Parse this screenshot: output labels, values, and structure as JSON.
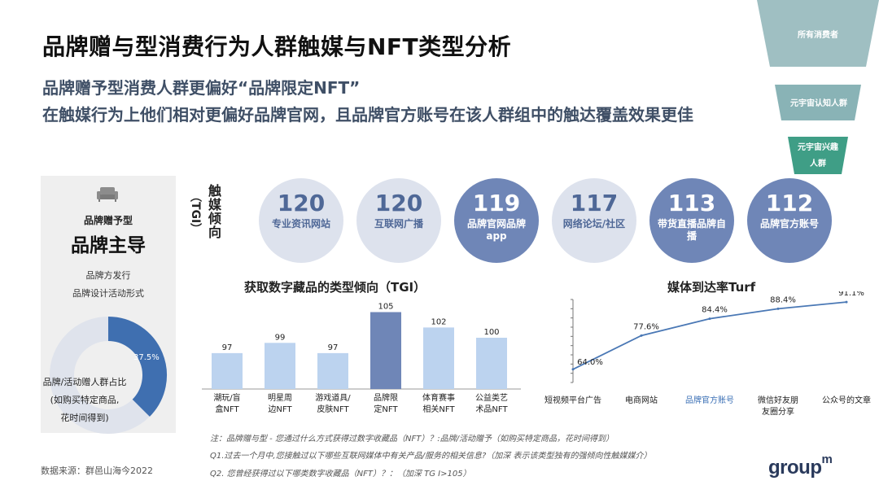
{
  "title": "品牌赠与型消费行为人群触媒与NFT类型分析",
  "subtitle1": "品牌赠予型消费人群更偏好“品牌限定NFT”",
  "subtitle2": "在触媒行为上他们相对更偏好品牌官网，且品牌官方账号在该人群组中的触达覆盖效果更佳",
  "funnel": {
    "levels": [
      "所有消费者",
      "元宇宙认知人群",
      "元宇宙兴趣人群"
    ],
    "colors": [
      "#9fbfc2",
      "#89b3b6",
      "#3f9e86"
    ]
  },
  "left_panel": {
    "icon": "couch-icon",
    "type_label": "品牌赠予型",
    "main_label": "品牌主导",
    "line1": "品牌方发行",
    "line2": "品牌设计活动形式",
    "donut_pct": "37.5%",
    "donut_value": 37.5,
    "donut_text1": "品牌/活动赠人群占比",
    "donut_text2": "(如购买特定商品,",
    "donut_text3": "花时间得到)"
  },
  "media": {
    "label": "触媒倾向",
    "tgi": "（TGI）",
    "items": [
      {
        "value": "120",
        "label": "专业资讯网站",
        "style": "light"
      },
      {
        "value": "120",
        "label": "互联网广播",
        "style": "light"
      },
      {
        "value": "119",
        "label": "品牌官网品牌app",
        "style": "dark"
      },
      {
        "value": "117",
        "label": "网络论坛/社区",
        "style": "light"
      },
      {
        "value": "113",
        "label": "带货直播品牌自播",
        "style": "dark"
      },
      {
        "value": "112",
        "label": "品牌官方账号",
        "style": "dark"
      }
    ]
  },
  "chart_data": [
    {
      "type": "bar",
      "title": "获取数字藏品的类型倾向（TGI）",
      "categories": [
        "潮玩/盲盒NFT",
        "明星周边NFT",
        "游戏道具/皮肤NFT",
        "品牌限定NFT",
        "体育赛事相关NFT",
        "公益类艺术品NFT"
      ],
      "category_lines": [
        [
          "潮玩/盲",
          "盒NFT"
        ],
        [
          "明星周",
          "边NFT"
        ],
        [
          "游戏道具/",
          "皮肤NFT"
        ],
        [
          "品牌限",
          "定NFT"
        ],
        [
          "体育赛事",
          "相关NFT"
        ],
        [
          "公益类艺",
          "术品NFT"
        ]
      ],
      "values": [
        97,
        99,
        97,
        105,
        102,
        100
      ],
      "highlight_index": 3,
      "colors": {
        "normal": "#bcd3ef",
        "highlight": "#6f86b7"
      }
    },
    {
      "type": "line",
      "title": "媒体到达率Turf",
      "categories": [
        "短视频平台广告",
        "电商网站",
        "品牌官方账号",
        "微信好友朋友圈分享",
        "公众号的文章"
      ],
      "category_lines": [
        [
          "短视频平台广告"
        ],
        [
          "电商网站"
        ],
        [
          "品牌官方账号"
        ],
        [
          "微信好友朋",
          "友圈分享"
        ],
        [
          "公众号的文章"
        ]
      ],
      "values": [
        64.0,
        77.6,
        84.4,
        88.4,
        91.1
      ],
      "labels": [
        "64.0%",
        "77.6%",
        "84.4%",
        "88.4%",
        "91.1%"
      ],
      "highlight_index": 2,
      "colors": {
        "line": "#4a78b5",
        "highlight_text": "#3a6fb5"
      }
    }
  ],
  "notes": {
    "note1": "注：品牌赠与型 - 您通过什么方式获得过数字收藏品（NFT）？:品牌/活动赠予（如购买特定商品，花时间得到）",
    "note2": "Q1.过去一个月中,您接触过以下哪些互联网媒体中有关产品/服务的相关信息?（加深 表示该类型独有的强倾向性触媒媒介）",
    "note3": "Q2. 您曾经获得过以下哪类数字收藏品（NFT）？：（加深 TG I>105）"
  },
  "source": "数据来源：群邑山海今2022",
  "logo": {
    "main": "group",
    "sup": "m"
  }
}
